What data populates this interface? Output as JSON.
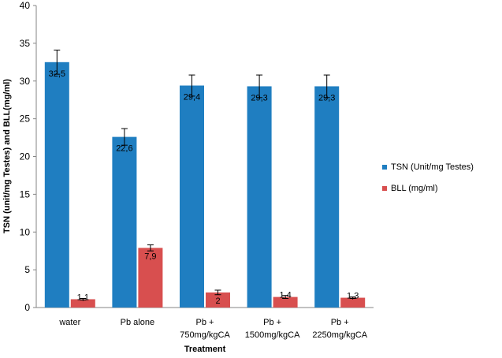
{
  "chart_data": {
    "type": "bar",
    "categories": [
      [
        "water"
      ],
      [
        "Pb alone"
      ],
      [
        "Pb +",
        "750mg/kgCA"
      ],
      [
        "Pb +",
        "1500mg/kgCA"
      ],
      [
        "Pb +",
        "2250mg/kgCA"
      ]
    ],
    "series": [
      {
        "name": "TSN (Unit/mg Testes)",
        "color": "#1F7EC1",
        "values": [
          32.5,
          22.6,
          29.4,
          29.3,
          29.3
        ],
        "labels": [
          "32,5",
          "22,6",
          "29,4",
          "29,3",
          "29,3"
        ],
        "errors": [
          1.6,
          1.1,
          1.4,
          1.5,
          1.5
        ]
      },
      {
        "name": "BLL (mg/ml)",
        "color": "#D84F4F",
        "values": [
          1.1,
          7.9,
          2.0,
          1.4,
          1.3
        ],
        "labels": [
          "1,1",
          "7,9",
          "2",
          "1,4",
          "1,3"
        ],
        "errors": [
          0.1,
          0.4,
          0.3,
          0.2,
          0.1
        ]
      }
    ],
    "xlabel": "Treatment",
    "ylabel": "TSN (unit/mg Testes) and BLL(mg/ml)",
    "ylim": [
      0,
      40
    ],
    "yticks": [
      0,
      5,
      10,
      15,
      20,
      25,
      30,
      35,
      40
    ],
    "grid": false,
    "legend_position": "right"
  }
}
